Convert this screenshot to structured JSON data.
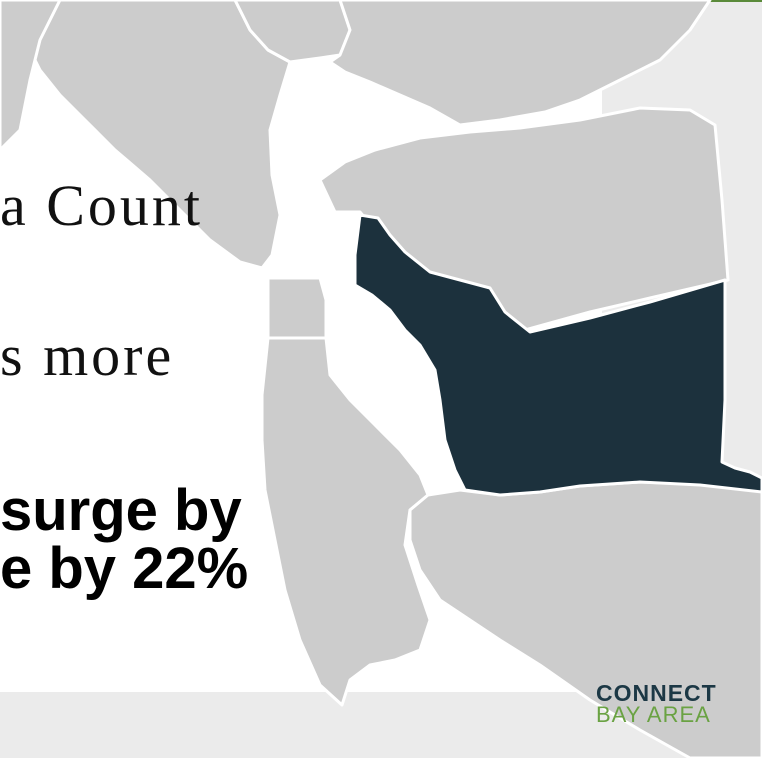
{
  "map": {
    "colors": {
      "background": "#ebebeb",
      "panel": "#ffffff",
      "county_fill": "#cccccc",
      "county_border": "#ffffff",
      "highlight_fill": "#1c313d",
      "accent_line": "#5a8a3a"
    },
    "highlighted_region": "alameda-county"
  },
  "text": {
    "line1": "a Count",
    "line2": "s more",
    "headline_line1": "surge by",
    "headline_line2": "e by 22%"
  },
  "logo": {
    "top": "CONNECT",
    "bottom": "BAY AREA"
  }
}
